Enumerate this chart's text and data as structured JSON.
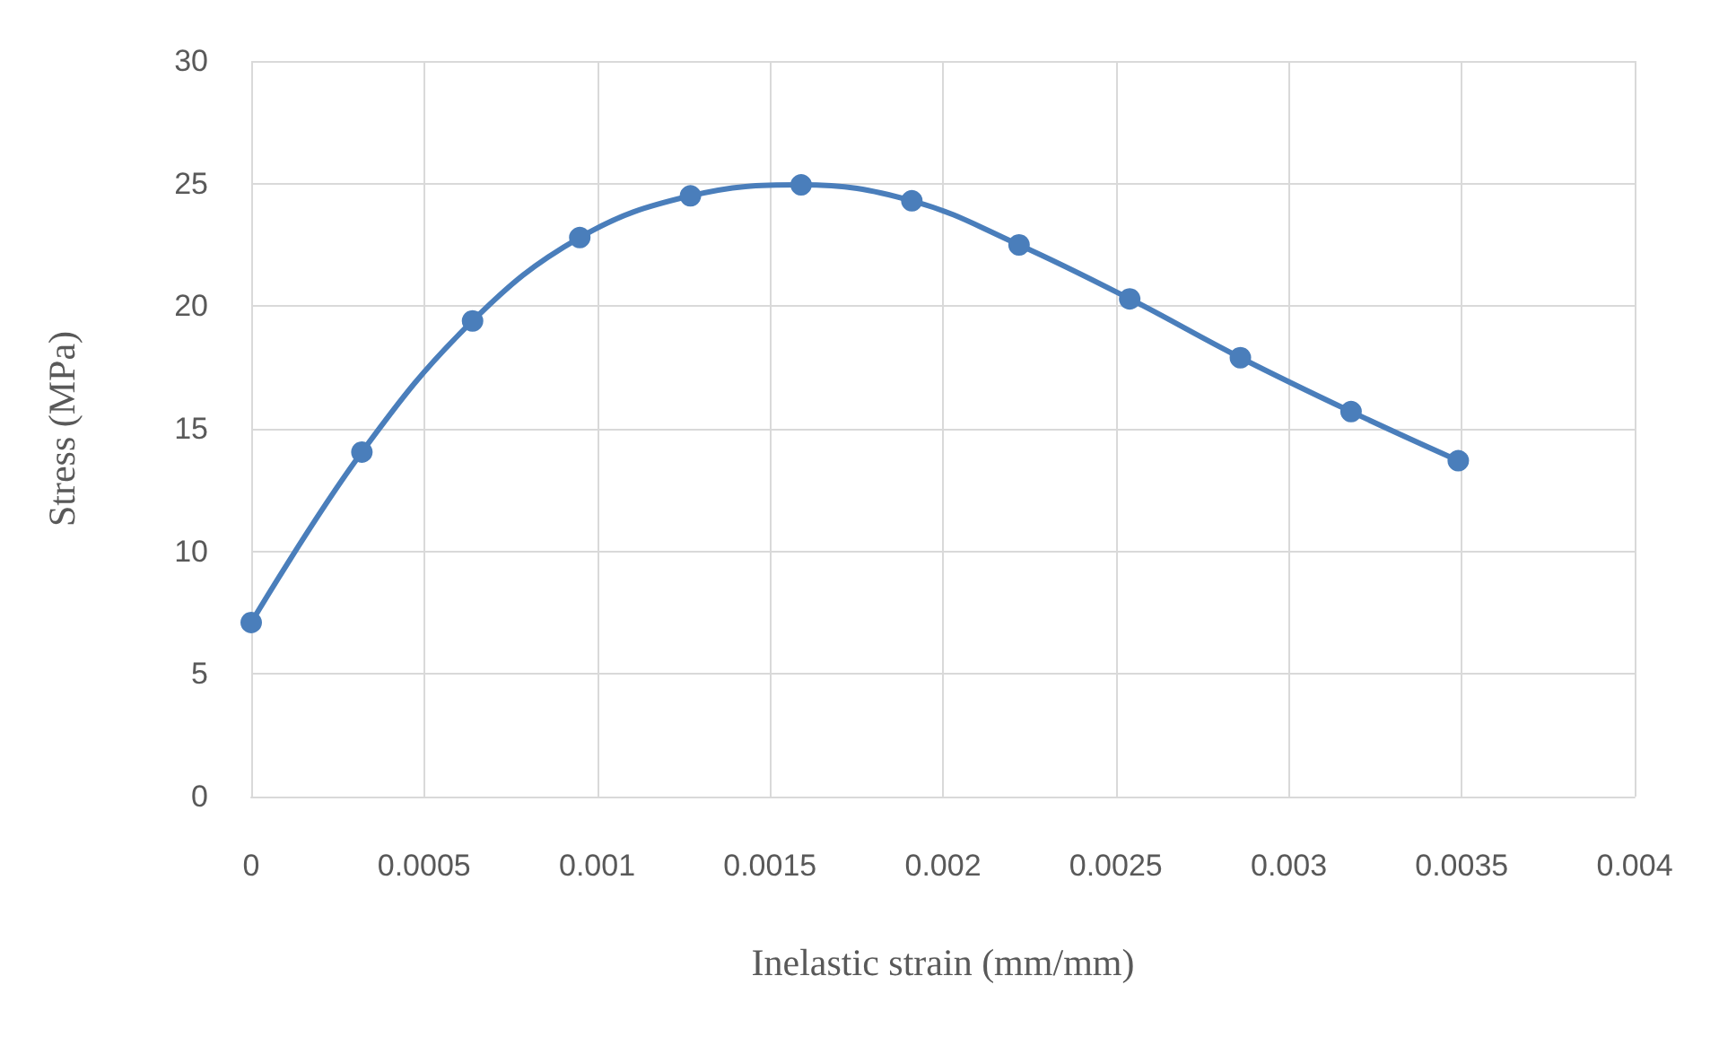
{
  "chart_data": {
    "type": "line",
    "xlabel": "Inelastic strain (mm/mm)",
    "ylabel": "Stress (MPa)",
    "x": [
      0,
      0.00032,
      0.00064,
      0.00095,
      0.00127,
      0.00159,
      0.00191,
      0.00222,
      0.00254,
      0.00286,
      0.00318,
      0.00349
    ],
    "series": [
      {
        "color": "#4a7ebb",
        "values": [
          7.1,
          14.05,
          19.4,
          22.8,
          24.5,
          24.95,
          24.3,
          22.5,
          20.3,
          17.9,
          15.7,
          13.7
        ]
      }
    ],
    "xlim": [
      0,
      0.004
    ],
    "xticks": [
      0,
      0.0005,
      0.001,
      0.0015,
      0.002,
      0.0025,
      0.003,
      0.0035,
      0.004
    ],
    "ylim": [
      0,
      30
    ],
    "yticks": [
      0,
      5,
      10,
      15,
      20,
      25,
      30
    ],
    "grid": true,
    "marker": "circle",
    "line_style": "solid"
  }
}
